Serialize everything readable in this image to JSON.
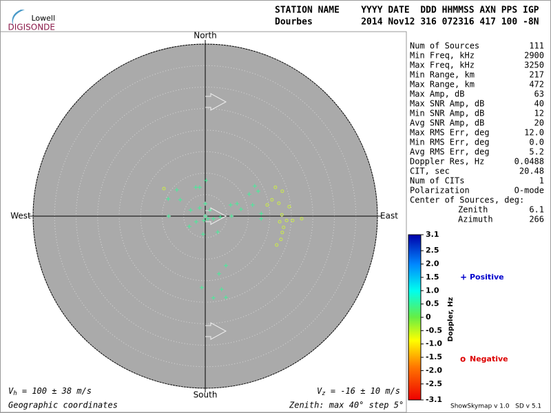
{
  "logo": {
    "top": "Lowell",
    "bottom": "DIGISONDE"
  },
  "header": {
    "line1": "STATION NAME    YYYY DATE  DDD HHMMSS AXN PPS IGP",
    "line2": "Dourbes         2014 Nov12 316 072316 417 100 -8N"
  },
  "stats": {
    "rows": [
      {
        "label": "Num of Sources",
        "value": "111"
      },
      {
        "label": "Min Freq, kHz",
        "value": "2900"
      },
      {
        "label": "Max Freq, kHz",
        "value": "3250"
      },
      {
        "label": "Min Range, km",
        "value": "217"
      },
      {
        "label": "Max Range, km",
        "value": "472"
      },
      {
        "label": "Max Amp, dB",
        "value": "63"
      },
      {
        "label": "Max SNR Amp, dB",
        "value": "40"
      },
      {
        "label": "Min SNR Amp, dB",
        "value": "12"
      },
      {
        "label": "Avg SNR Amp, dB",
        "value": "20"
      },
      {
        "label": "Max RMS Err, deg",
        "value": "12.0"
      },
      {
        "label": "Min RMS Err, deg",
        "value": "0.0"
      },
      {
        "label": "Avg RMS Err, deg",
        "value": "5.2"
      },
      {
        "label": "Doppler Res, Hz",
        "value": "0.0488"
      },
      {
        "label": "CIT, sec",
        "value": "20.48"
      },
      {
        "label": "Num of CITs",
        "value": "1"
      },
      {
        "label": "Polarization",
        "value": "O-mode"
      }
    ],
    "center_title": "Center of Sources, deg:",
    "center_rows": [
      {
        "label": "Zenith",
        "value": "6.1"
      },
      {
        "label": "Azimuth",
        "value": "266"
      }
    ]
  },
  "chart_data": {
    "type": "scatter",
    "directions": {
      "north": "North",
      "south": "South",
      "east": "East",
      "west": "West"
    },
    "zlim": [
      0,
      40
    ],
    "zticks": [
      5,
      10,
      15,
      20,
      25,
      30,
      35,
      40
    ],
    "series": [
      {
        "name": "Positive",
        "marker": "+",
        "color": "#44ee99",
        "legend_color": "#0000cc",
        "x": [
          0.2,
          -2.2,
          -1.3,
          -6.6,
          -8.6,
          -5.8,
          0,
          -1.3,
          -3.4,
          1.1,
          0,
          0.6,
          -0.3,
          1.9,
          3.5,
          -2.1,
          -3.7,
          2.9,
          -0.5,
          5.9,
          7.4,
          8.3,
          10.2,
          11.5,
          12.3,
          11.0,
          13.0,
          13.0,
          4.8,
          3.2,
          -0.8,
          3.8,
          1.9,
          4.8,
          -8.5,
          6.1
        ],
        "y": [
          8.3,
          6.7,
          6.7,
          6.1,
          4.0,
          3.8,
          2.9,
          1.9,
          1.4,
          1.4,
          0,
          -0.6,
          -1,
          -0.6,
          -0.2,
          -1.3,
          -2.4,
          -3.7,
          -4.2,
          2.6,
          2.9,
          1.6,
          5.1,
          7.0,
          5.8,
          2.6,
          0.6,
          -0.6,
          -11.5,
          -13.4,
          -16.6,
          -17.0,
          -19.0,
          -18.9,
          0,
          0
        ]
      },
      {
        "name": "Negative",
        "marker": "o",
        "color": "#ccee44",
        "legend_color": "#dd0000",
        "x": [
          16.3,
          17.9,
          15.5,
          17.1,
          14.4,
          19.5,
          17.8,
          17.3,
          18.9,
          20.3,
          22.4,
          18.2,
          17.9,
          17.6,
          16.6,
          -9.6
        ],
        "y": [
          6.7,
          5.8,
          3.8,
          3.0,
          2.6,
          2.2,
          0.3,
          -1.3,
          -1,
          -1,
          -0.6,
          -2.6,
          -3.8,
          -5.4,
          -6.7,
          6.4
        ]
      }
    ],
    "colorbar": {
      "label": "Doppler, Hz",
      "lim": [
        -3.1,
        3.1
      ],
      "ticks": [
        3.1,
        2.5,
        {
          "value": 2,
          "label": "2.0"
        },
        1.5,
        {
          "value": 1,
          "label": "1.0"
        },
        0.5,
        0,
        -0.5,
        {
          "value": -1,
          "label": "-1.0"
        },
        -1.5,
        {
          "value": -2,
          "label": "-2.0"
        },
        -2.5,
        -3.1
      ]
    },
    "vh": {
      "symbol": "V",
      "sub": "h",
      "text": " = 100 ± 38 m/s"
    },
    "vz": {
      "symbol": "V",
      "sub": "z",
      "text": " = -16 ± 10 m/s"
    },
    "coords": "Geographic coordinates",
    "zenith_note": "Zenith: max 40°  step 5°",
    "footer": "ShowSkymap v 1.0   SD v 5.1"
  }
}
